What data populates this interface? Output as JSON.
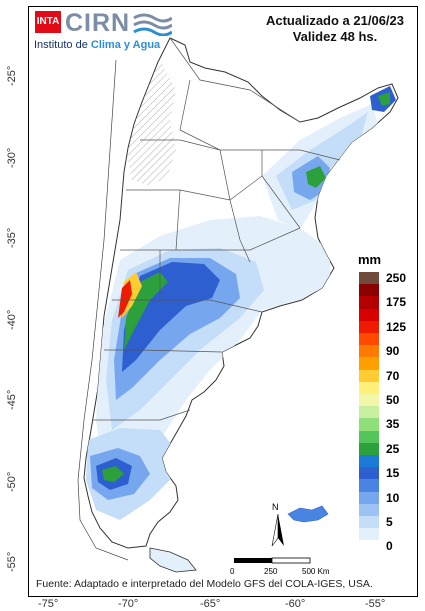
{
  "header": {
    "brand_inta": "INTA",
    "brand_cirn": "CIRN",
    "institute_prefix": "Instituto de ",
    "institute_highlight": "Clima y Agua",
    "updated": "Actualizado a 21/06/23",
    "validity": "Validez 48 hs."
  },
  "legend": {
    "unit": "mm",
    "classes": [
      {
        "label": "250",
        "color": "#6e4b3a"
      },
      {
        "label": "",
        "color": "#8b0000"
      },
      {
        "label": "175",
        "color": "#b40000"
      },
      {
        "label": "",
        "color": "#d80000"
      },
      {
        "label": "125",
        "color": "#ee1b00"
      },
      {
        "label": "",
        "color": "#ff4a00"
      },
      {
        "label": "90",
        "color": "#ff7a00"
      },
      {
        "label": "",
        "color": "#ffa000"
      },
      {
        "label": "70",
        "color": "#ffcc33"
      },
      {
        "label": "",
        "color": "#fff07a"
      },
      {
        "label": "50",
        "color": "#f2f7a8"
      },
      {
        "label": "",
        "color": "#c8f0a0"
      },
      {
        "label": "35",
        "color": "#8fe07a"
      },
      {
        "label": "",
        "color": "#55c45a"
      },
      {
        "label": "25",
        "color": "#2ca03a"
      },
      {
        "label": "",
        "color": "#1a7bd6"
      },
      {
        "label": "15",
        "color": "#2d5fd0"
      },
      {
        "label": "",
        "color": "#4a84e2"
      },
      {
        "label": "10",
        "color": "#76a7ee"
      },
      {
        "label": "",
        "color": "#9cc3f4"
      },
      {
        "label": "5",
        "color": "#c4ddf8"
      },
      {
        "label": "",
        "color": "#e3f0fb"
      },
      {
        "label": "0",
        "color": "#ffffff"
      }
    ]
  },
  "scale": {
    "zero": "0",
    "mid": "250",
    "end": "500 Km",
    "north": "N"
  },
  "axes": {
    "lon": [
      "-75°",
      "-70°",
      "-65°",
      "-60°",
      "-55°"
    ],
    "lat": [
      "-25°",
      "-30°",
      "-35°",
      "-40°",
      "-45°",
      "-50°",
      "-55°"
    ]
  },
  "source": "Fuente: Adaptado e interpretado del Modelo GFS del COLA-IGES, USA.",
  "colors": {
    "frame": "#000000",
    "land": "#ffffff",
    "border": "#555555"
  }
}
